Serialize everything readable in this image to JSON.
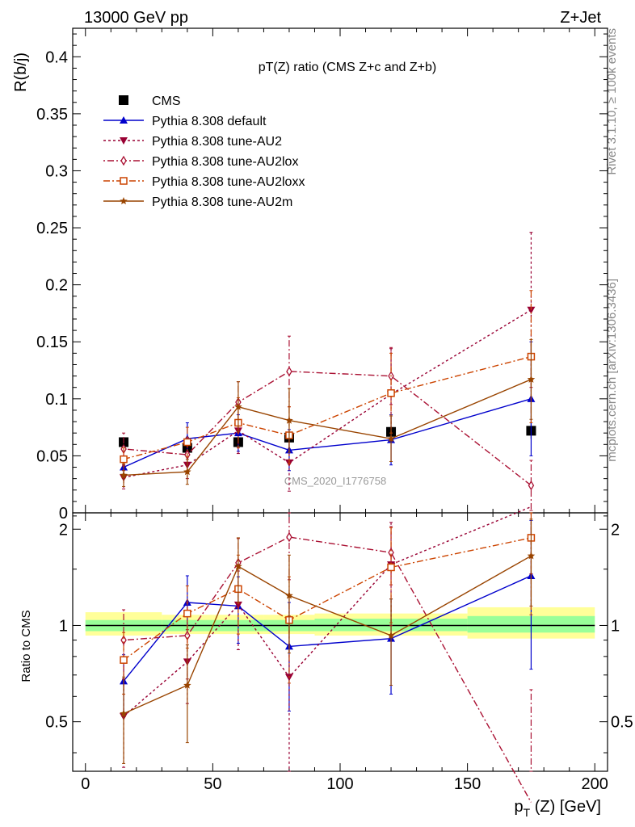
{
  "header": {
    "left": "13000 GeV pp",
    "right": "Z+Jet"
  },
  "side_text": {
    "rivet": "Rivet 3.1.10, ≥ 100k events",
    "mcplots": "mcplots.cern.ch [arXiv:1306.3436]"
  },
  "watermark": "CMS_2020_I1776758",
  "chart_data": [
    {
      "type": "line",
      "panel": "main",
      "title": "pT(Z) ratio (CMS  Z+c and Z+b)",
      "ylabel": "R(b/j)",
      "xlim": [
        -5,
        205
      ],
      "ylim": [
        0,
        0.425
      ],
      "yticks": [
        0,
        0.05,
        0.1,
        0.15,
        0.2,
        0.25,
        0.3,
        0.35,
        0.4
      ],
      "ytick_labels": [
        "0",
        "0.05",
        "0.1",
        "0.15",
        "0.2",
        "0.25",
        "0.3",
        "0.35",
        "0.4"
      ],
      "legend_position": "top-left",
      "series": [
        {
          "name": "CMS",
          "color": "#000000",
          "marker": "square-filled",
          "dash": "none",
          "x": [
            15,
            40,
            60,
            80,
            120,
            175
          ],
          "y": [
            0.062,
            0.057,
            0.062,
            0.066,
            0.071,
            0.072
          ],
          "err": [
            0.003,
            0.003,
            0.004,
            0.004,
            0.005,
            0.007
          ]
        },
        {
          "name": "Pythia 8.308 default",
          "color": "#0000cc",
          "marker": "triangle-up-filled",
          "dash": "solid",
          "x": [
            15,
            40,
            60,
            80,
            120,
            175
          ],
          "y": [
            0.04,
            0.065,
            0.07,
            0.055,
            0.064,
            0.1
          ],
          "err": [
            0.008,
            0.014,
            0.016,
            0.018,
            0.022,
            0.05
          ]
        },
        {
          "name": "Pythia 8.308 tune-AU2",
          "color": "#990033",
          "marker": "triangle-down-filled",
          "dash": "3,3",
          "x": [
            15,
            40,
            60,
            80,
            120,
            175
          ],
          "y": [
            0.031,
            0.042,
            0.072,
            0.044,
            0.104,
            0.178
          ],
          "err": [
            0.01,
            0.012,
            0.02,
            0.025,
            0.04,
            0.068
          ]
        },
        {
          "name": "Pythia 8.308 tune-AU2lox",
          "color": "#aa1133",
          "marker": "diamond-open",
          "dash": "2,3,8,3",
          "x": [
            15,
            40,
            60,
            80,
            120,
            175
          ],
          "y": [
            0.056,
            0.051,
            0.097,
            0.124,
            0.12,
            0.024
          ],
          "err": [
            0.014,
            0.015,
            0.018,
            0.031,
            0.025,
            0.022
          ]
        },
        {
          "name": "Pythia 8.308 tune-AU2loxx",
          "color": "#cc4400",
          "marker": "square-open",
          "dash": "8,3,2,3",
          "x": [
            15,
            40,
            60,
            80,
            120,
            175
          ],
          "y": [
            0.047,
            0.062,
            0.079,
            0.068,
            0.105,
            0.137
          ],
          "err": [
            0.01,
            0.013,
            0.022,
            0.025,
            0.035,
            0.058
          ]
        },
        {
          "name": "Pythia 8.308 tune-AU2m",
          "color": "#994400",
          "marker": "star-filled",
          "dash": "solid",
          "x": [
            15,
            40,
            60,
            80,
            120,
            175
          ],
          "y": [
            0.033,
            0.036,
            0.093,
            0.081,
            0.065,
            0.117
          ],
          "err": [
            0.01,
            0.011,
            0.022,
            0.028,
            0.02,
            0.035
          ]
        }
      ]
    },
    {
      "type": "line",
      "panel": "ratio",
      "ylabel": "Ratio to CMS",
      "xlabel": "p_T (Z) [GeV]",
      "xlim": [
        -5,
        205
      ],
      "xticks": [
        0,
        50,
        100,
        150,
        200
      ],
      "xtick_labels": [
        "0",
        "50",
        "100",
        "150",
        "200"
      ],
      "ylim": [
        0.35,
        2.25
      ],
      "yticks": [
        0.5,
        1,
        2
      ],
      "ytick_labels": [
        "0.5",
        "1",
        "2"
      ],
      "bands": [
        {
          "x0": 0,
          "x1": 30,
          "yellow": [
            0.93,
            1.1
          ],
          "green": [
            0.96,
            1.04
          ]
        },
        {
          "x0": 30,
          "x1": 50,
          "yellow": [
            0.94,
            1.08
          ],
          "green": [
            0.96,
            1.04
          ]
        },
        {
          "x0": 50,
          "x1": 70,
          "yellow": [
            0.94,
            1.08
          ],
          "green": [
            0.96,
            1.04
          ]
        },
        {
          "x0": 70,
          "x1": 90,
          "yellow": [
            0.94,
            1.08
          ],
          "green": [
            0.96,
            1.04
          ]
        },
        {
          "x0": 90,
          "x1": 150,
          "yellow": [
            0.93,
            1.09
          ],
          "green": [
            0.96,
            1.05
          ]
        },
        {
          "x0": 150,
          "x1": 200,
          "yellow": [
            0.91,
            1.14
          ],
          "green": [
            0.95,
            1.07
          ]
        }
      ],
      "series": [
        {
          "name": "Pythia 8.308 default",
          "x": [
            15,
            40,
            60,
            80,
            120,
            175
          ],
          "y": [
            0.67,
            1.18,
            1.15,
            0.86,
            0.91,
            1.43
          ],
          "err": [
            0.14,
            0.25,
            0.27,
            0.32,
            0.3,
            0.7
          ]
        },
        {
          "name": "Pythia 8.308 tune-AU2",
          "x": [
            15,
            40,
            60,
            80,
            120,
            175
          ],
          "y": [
            0.52,
            0.77,
            1.16,
            0.69,
            1.55,
            2.35
          ],
          "err": [
            0.16,
            0.2,
            0.32,
            0.38,
            0.55,
            0.9
          ]
        },
        {
          "name": "Pythia 8.308 tune-AU2lox",
          "x": [
            15,
            40,
            60,
            80,
            120,
            175
          ],
          "y": [
            0.9,
            0.93,
            1.57,
            1.89,
            1.69,
            0.28
          ],
          "err": [
            0.22,
            0.25,
            0.3,
            0.5,
            0.35,
            0.35
          ]
        },
        {
          "name": "Pythia 8.308 tune-AU2loxx",
          "x": [
            15,
            40,
            60,
            80,
            120,
            175
          ],
          "y": [
            0.78,
            1.09,
            1.3,
            1.04,
            1.52,
            1.88
          ],
          "err": [
            0.17,
            0.24,
            0.36,
            0.38,
            0.5,
            0.8
          ]
        },
        {
          "name": "Pythia 8.308 tune-AU2m",
          "x": [
            15,
            40,
            60,
            80,
            120,
            175
          ],
          "y": [
            0.53,
            0.65,
            1.53,
            1.24,
            0.93,
            1.65
          ],
          "err": [
            0.16,
            0.22,
            0.35,
            0.42,
            0.28,
            0.5
          ]
        }
      ]
    }
  ]
}
